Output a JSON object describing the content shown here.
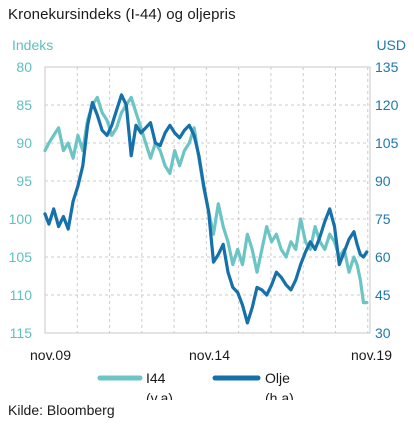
{
  "title": "Kronekursindeks (I-44) og oljepris",
  "source": "Kilde: Bloomberg",
  "chart_data": {
    "type": "line",
    "x_ticks": [
      "nov.09",
      "nov.14",
      "nov.19"
    ],
    "x_range": [
      2009.83,
      2019.9
    ],
    "ylabel_left": "Indeks",
    "ylabel_right": "USD",
    "ylim_left": [
      80,
      115
    ],
    "ylim_right": [
      135,
      30
    ],
    "yticks_left": [
      80,
      85,
      90,
      95,
      100,
      105,
      110,
      115
    ],
    "yticks_right": [
      135,
      120,
      105,
      90,
      75,
      60,
      45,
      30
    ],
    "grid": true,
    "legend_position": "bottom-center",
    "colors": {
      "i44": "#6cc5c4",
      "oil": "#1670a9",
      "left_axis": "#5fbfc0",
      "right_axis": "#1f78ad"
    },
    "series": [
      {
        "key": "i44",
        "name": "I44",
        "sub": "(v.a)",
        "axis": "left",
        "x": [
          2009.83,
          2009.95,
          2010.1,
          2010.25,
          2010.4,
          2010.55,
          2010.7,
          2010.85,
          2011.0,
          2011.15,
          2011.3,
          2011.45,
          2011.6,
          2011.75,
          2011.9,
          2012.05,
          2012.2,
          2012.35,
          2012.5,
          2012.65,
          2012.8,
          2012.95,
          2013.1,
          2013.25,
          2013.4,
          2013.55,
          2013.7,
          2013.85,
          2014.0,
          2014.15,
          2014.3,
          2014.45,
          2014.6,
          2014.75,
          2014.9,
          2015.05,
          2015.2,
          2015.35,
          2015.5,
          2015.65,
          2015.8,
          2015.95,
          2016.1,
          2016.25,
          2016.4,
          2016.55,
          2016.7,
          2016.85,
          2017.0,
          2017.15,
          2017.3,
          2017.45,
          2017.6,
          2017.75,
          2017.9,
          2018.05,
          2018.2,
          2018.35,
          2018.5,
          2018.65,
          2018.8,
          2018.95,
          2019.1,
          2019.25,
          2019.4,
          2019.5,
          2019.6,
          2019.7,
          2019.8
        ],
        "values": [
          91,
          90,
          89,
          88,
          91,
          90,
          92,
          89,
          91,
          87,
          85,
          84,
          86,
          87,
          89,
          88,
          86,
          85,
          84,
          86,
          88,
          90,
          92,
          90,
          91,
          93,
          94,
          91,
          93,
          91,
          90,
          88,
          92,
          96,
          99,
          102,
          98,
          101,
          103,
          106,
          104,
          106,
          102,
          104,
          107,
          104,
          101,
          103,
          102,
          104,
          105,
          103,
          104,
          100,
          103,
          104,
          101,
          103,
          104,
          102,
          103,
          105,
          104,
          107,
          105,
          106,
          108,
          111,
          111
        ]
      },
      {
        "key": "oil",
        "name": "Olje",
        "sub": "(h.a)",
        "axis": "right",
        "x": [
          2009.83,
          2009.95,
          2010.1,
          2010.25,
          2010.4,
          2010.55,
          2010.7,
          2010.85,
          2011.0,
          2011.15,
          2011.3,
          2011.45,
          2011.6,
          2011.75,
          2011.9,
          2012.05,
          2012.2,
          2012.35,
          2012.5,
          2012.65,
          2012.8,
          2012.95,
          2013.1,
          2013.25,
          2013.4,
          2013.55,
          2013.7,
          2013.85,
          2014.0,
          2014.15,
          2014.3,
          2014.45,
          2014.6,
          2014.75,
          2014.9,
          2015.05,
          2015.2,
          2015.35,
          2015.5,
          2015.65,
          2015.8,
          2015.95,
          2016.1,
          2016.25,
          2016.4,
          2016.55,
          2016.7,
          2016.85,
          2017.0,
          2017.15,
          2017.3,
          2017.45,
          2017.6,
          2017.75,
          2017.9,
          2018.05,
          2018.2,
          2018.35,
          2018.5,
          2018.65,
          2018.8,
          2018.95,
          2019.1,
          2019.25,
          2019.4,
          2019.5,
          2019.6,
          2019.7,
          2019.8
        ],
        "values": [
          77,
          73,
          79,
          72,
          76,
          71,
          82,
          88,
          96,
          112,
          121,
          116,
          110,
          108,
          112,
          118,
          124,
          120,
          100,
          112,
          109,
          111,
          113,
          105,
          104,
          109,
          112,
          109,
          107,
          110,
          112,
          108,
          100,
          88,
          78,
          58,
          61,
          65,
          54,
          48,
          46,
          41,
          34,
          40,
          48,
          47,
          45,
          49,
          54,
          52,
          49,
          47,
          51,
          57,
          62,
          66,
          63,
          68,
          74,
          79,
          72,
          57,
          62,
          67,
          70,
          65,
          61,
          60,
          62
        ]
      }
    ]
  }
}
